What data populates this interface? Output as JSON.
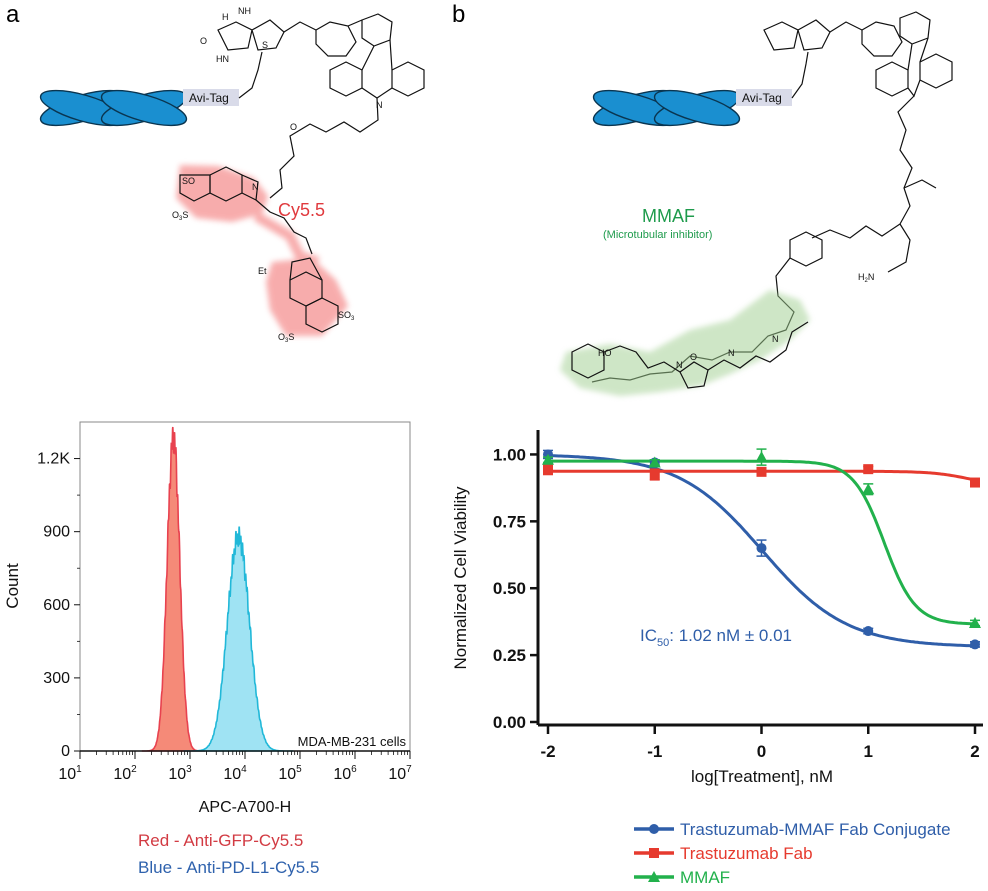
{
  "panels": {
    "a": {
      "letter": "a",
      "tag_label": "Avi-Tag",
      "dye_label": "Cy5.5",
      "atoms": {
        "so3": "SO",
        "sub3": "3",
        "o3s": "O",
        "o3s_sub": "3",
        "o3s_s": "S",
        "n": "N",
        "et": "Et",
        "h": "H",
        "o": "O",
        "nh": "NH",
        "hn": "HN",
        "s": "S"
      }
    },
    "b": {
      "letter": "b",
      "tag_label": "Avi-Tag",
      "drug_label": "MMAF",
      "drug_sublabel": "(Microtubular inhibitor)",
      "atoms": {
        "ho": "HO",
        "h2n": "H",
        "h2n_sub": "2",
        "h2n_n": "N",
        "o": "O",
        "n": "N",
        "h": "H"
      }
    }
  },
  "flow": {
    "chart_data": {
      "type": "area",
      "xlabel": "APC-A700-H",
      "ylabel": "Count",
      "x_scale": "log",
      "xlim": [
        10,
        10000000
      ],
      "ylim": [
        0,
        1350
      ],
      "x_ticks": [
        {
          "base": "10",
          "exp": "1"
        },
        {
          "base": "10",
          "exp": "2"
        },
        {
          "base": "10",
          "exp": "3"
        },
        {
          "base": "10",
          "exp": "4"
        },
        {
          "base": "10",
          "exp": "5"
        },
        {
          "base": "10",
          "exp": "6"
        },
        {
          "base": "10",
          "exp": "7"
        }
      ],
      "y_ticks": [
        "0",
        "300",
        "600",
        "900",
        "1.2K"
      ],
      "y_tick_values": [
        0,
        300,
        600,
        900,
        1200
      ],
      "annotation": "MDA-MB-231 cells",
      "series": [
        {
          "name": "Red - Anti-GFP-Cy5.5",
          "color": "#e8424f",
          "fill": "#f58a78",
          "peak_x": 500,
          "peak_count": 1290,
          "log_sigma": 0.115
        },
        {
          "name": "Blue - Anti-PD-L1-Cy5.5",
          "color": "#21b8d8",
          "fill": "#9fe3f3",
          "peak_x": 7600,
          "peak_count": 880,
          "log_sigma": 0.2
        }
      ]
    }
  },
  "viability": {
    "chart_data": {
      "type": "line",
      "xlabel": "log[Treatment], nM",
      "ylabel": "Normalized Cell Viability",
      "xlim": [
        -2,
        2
      ],
      "ylim": [
        0,
        1
      ],
      "x_ticks": [
        "-2",
        "-1",
        "0",
        "1",
        "2"
      ],
      "x_tick_values": [
        -2,
        -1,
        0,
        1,
        2
      ],
      "y_ticks": [
        "0.00",
        "0.25",
        "0.50",
        "0.75",
        "1.00"
      ],
      "y_tick_values": [
        0,
        0.25,
        0.5,
        0.75,
        1
      ],
      "annotation": {
        "prefix": "IC",
        "sub": "50",
        "suffix": ": 1.02 nM ± 0.01"
      },
      "series": [
        {
          "name": "Trastuzumab-MMAF Fab Conjugate",
          "color": "#2f5ea9",
          "marker": "circle",
          "x": [
            -2,
            -1,
            0,
            1,
            2
          ],
          "y": [
            1.0,
            0.97,
            0.65,
            0.34,
            0.29
          ],
          "err": [
            0.015,
            0.01,
            0.03,
            0.01,
            0.01
          ],
          "fit": {
            "top": 1.0,
            "bottom": 0.28,
            "logic50": 0.009,
            "hill": 1.1
          }
        },
        {
          "name": "Trastuzumab Fab",
          "color": "#e63a2e",
          "marker": "square",
          "x": [
            -2,
            -1,
            0,
            1,
            2
          ],
          "y": [
            0.945,
            0.925,
            0.935,
            0.945,
            0.895
          ],
          "err": [
            0.02,
            0.02,
            0.01,
            0.01,
            0.008
          ],
          "fit": {
            "top": 0.937,
            "bottom": 0.88,
            "logic50": 1.95,
            "hill": 2.5
          }
        },
        {
          "name": "MMAF",
          "color": "#22b14c",
          "marker": "triangle",
          "x": [
            -2,
            -1,
            0,
            1,
            2
          ],
          "y": [
            0.98,
            0.97,
            0.99,
            0.87,
            0.37
          ],
          "err": [
            0.01,
            0.01,
            0.03,
            0.02,
            0.01
          ],
          "fit": {
            "top": 0.975,
            "bottom": 0.365,
            "logic50": 1.15,
            "hill": 3.0
          }
        }
      ]
    }
  }
}
